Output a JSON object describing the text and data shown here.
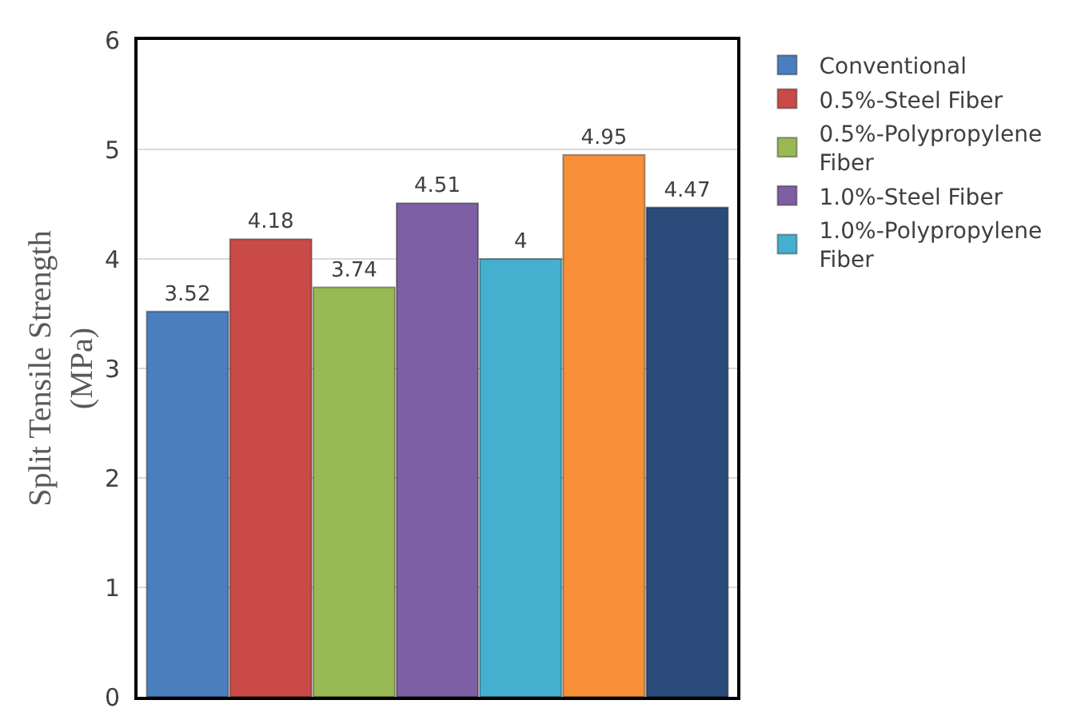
{
  "chart_data": {
    "type": "bar",
    "ylabel": "Split Tensile Strength (MPa)",
    "categories": [
      null,
      null,
      null,
      null,
      null,
      null,
      null
    ],
    "series": [
      {
        "name": "Conventional",
        "color": "#4a7ebf",
        "values": [
          3.52,
          null,
          null,
          null,
          null,
          null,
          null
        ]
      },
      {
        "name": "0.5%-Steel Fiber",
        "color": "#c94a47",
        "values": [
          null,
          4.18,
          null,
          null,
          null,
          null,
          null
        ]
      },
      {
        "name": "0.5%-Polypropylene Fiber",
        "color": "#98b954",
        "values": [
          null,
          null,
          3.74,
          null,
          null,
          null,
          null
        ]
      },
      {
        "name": "1.0%-Steel Fiber",
        "color": "#7d5fa3",
        "values": [
          null,
          null,
          null,
          4.51,
          null,
          null,
          null
        ]
      },
      {
        "name": "1.0%-Polypropylene Fiber",
        "color": "#45afcf",
        "values": [
          null,
          null,
          null,
          null,
          4,
          null,
          null
        ]
      },
      {
        "color": "#f79038",
        "values": [
          null,
          null,
          null,
          null,
          null,
          4.95,
          null
        ]
      },
      {
        "color": "#2b4b7a",
        "values": [
          null,
          null,
          null,
          null,
          null,
          null,
          4.47
        ]
      }
    ],
    "ylim": [
      0,
      6
    ],
    "yticks": [
      0,
      1,
      2,
      3,
      4,
      5,
      6
    ],
    "grid": "y",
    "legend": "right",
    "data_labels": true
  }
}
